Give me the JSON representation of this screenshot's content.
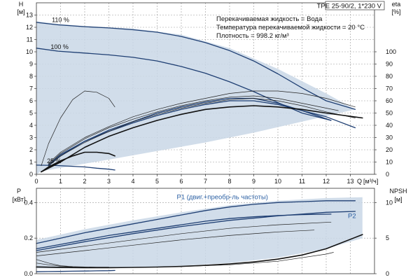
{
  "model": "TPE 25-90/2, 1*230 V",
  "info_lines": [
    "Перекачиваемая жидкость = Вода",
    "Температура перекачиваемой жидкости = 20 °C",
    "Плотность = 998.2 кг/м³"
  ],
  "colors": {
    "curve_dark": "#1f3f73",
    "curve_black": "#111111",
    "envelope_fill": "#c9d7e6",
    "accent": "#2a5fa3"
  },
  "chart_data": [
    {
      "type": "line",
      "id": "head",
      "left_axis": {
        "label": "H",
        "unit": "[м]",
        "ylim": [
          0,
          14
        ],
        "ticks": [
          0,
          1,
          2,
          3,
          4,
          5,
          6,
          7,
          8,
          9,
          10,
          11,
          12,
          13
        ]
      },
      "right_axis": {
        "label": "eta",
        "unit": "[%]",
        "ylim": [
          0,
          140
        ],
        "ticks": [
          0,
          10,
          20,
          30,
          40,
          50,
          60,
          70,
          80,
          90,
          100
        ]
      },
      "x_axis": {
        "label": "Q",
        "unit": "[м³/ч]",
        "xlim": [
          0,
          14
        ],
        "ticks": [
          0,
          1,
          2,
          3,
          4,
          5,
          6,
          7,
          8,
          9,
          10,
          11,
          12,
          13
        ]
      },
      "grid": true,
      "speed_labels": [
        {
          "text": "110 %",
          "x": 0.35,
          "y": 12.6
        },
        {
          "text": "100 %",
          "x": 0.3,
          "y": 10.4
        },
        {
          "text": "25 %",
          "x": 0.15,
          "y": 1.1
        }
      ],
      "envelope": {
        "x": [
          0,
          0.8,
          2,
          4,
          6,
          8,
          10,
          12,
          13.2,
          11,
          9,
          7,
          5,
          3,
          1.5,
          0.2,
          0
        ],
        "y": [
          12.5,
          12.3,
          12.1,
          11.9,
          11.4,
          10.3,
          8.6,
          6.6,
          5.3,
          4.3,
          3.4,
          2.6,
          1.9,
          1.2,
          0.7,
          0.25,
          0
        ]
      },
      "series": [
        {
          "role": "head-110",
          "style": "dark",
          "x": [
            0,
            0.9,
            2,
            3,
            4,
            5,
            6,
            7,
            8,
            9,
            10,
            11,
            12,
            13.2
          ],
          "y": [
            12.4,
            12.2,
            12.05,
            11.95,
            11.8,
            11.6,
            11.25,
            10.75,
            10.1,
            9.25,
            8.2,
            7.05,
            6.0,
            5.3
          ]
        },
        {
          "role": "head-100",
          "style": "dark",
          "x": [
            0,
            0.9,
            2,
            3,
            4,
            5,
            6,
            7,
            8,
            9,
            10,
            11,
            12.2
          ],
          "y": [
            10.3,
            10.05,
            9.9,
            9.75,
            9.55,
            9.25,
            8.8,
            8.25,
            7.55,
            6.75,
            5.85,
            5.0,
            4.4
          ]
        },
        {
          "role": "head-25",
          "style": "dark",
          "x": [
            0,
            0.8,
            1.5,
            2,
            2.5,
            3,
            3.25
          ],
          "y": [
            0.75,
            0.72,
            0.65,
            0.6,
            0.5,
            0.42,
            0.35
          ]
        },
        {
          "role": "eta-110",
          "style": "dark",
          "x": [
            0.5,
            1,
            2,
            3,
            4,
            5,
            6,
            7,
            8,
            9,
            10,
            11,
            12,
            13.2
          ],
          "y": [
            8,
            16,
            27,
            35,
            42,
            48,
            53,
            57,
            60,
            60,
            57,
            52,
            47,
            38
          ]
        },
        {
          "role": "eta-100",
          "style": "dark",
          "x": [
            0.5,
            1,
            2,
            3,
            4,
            5,
            6,
            7,
            8,
            9,
            10,
            11,
            12.2
          ],
          "y": [
            7,
            15,
            27,
            36,
            43,
            50,
            55,
            59,
            62,
            62,
            58,
            52,
            44
          ]
        },
        {
          "role": "eta-mid-1",
          "style": "thin",
          "x": [
            0.5,
            1,
            2,
            3,
            4,
            5,
            6,
            7,
            8,
            9,
            10,
            11,
            12.5
          ],
          "y": [
            8,
            17,
            29,
            38,
            45,
            51,
            56,
            60,
            63,
            64,
            62,
            58,
            52
          ]
        },
        {
          "role": "eta-mid-2",
          "style": "thin",
          "x": [
            0.5,
            1,
            2,
            3,
            4,
            5,
            6,
            7,
            8,
            9,
            10,
            11,
            12,
            13.2
          ],
          "y": [
            9,
            18,
            30,
            39,
            47,
            53,
            58,
            62,
            66,
            68,
            68,
            66,
            62,
            55
          ]
        },
        {
          "role": "eta-mid-3",
          "style": "thin",
          "x": [
            0.5,
            1,
            2,
            3,
            4,
            5,
            6,
            7,
            8,
            9,
            10,
            11,
            12,
            13.2
          ],
          "y": [
            7,
            15,
            26,
            35,
            43,
            49,
            54,
            58,
            61,
            62,
            60,
            56,
            51,
            46
          ]
        },
        {
          "role": "eta-thick",
          "style": "black",
          "x": [
            0.2,
            1,
            2,
            3,
            4,
            5,
            6,
            7,
            8,
            9,
            10,
            11,
            12,
            13.5
          ],
          "y": [
            2,
            10,
            22,
            31,
            38,
            44,
            49,
            53,
            55,
            56,
            55,
            53,
            50,
            46
          ]
        },
        {
          "role": "eta-small-1",
          "style": "thin",
          "x": [
            0.2,
            0.5,
            1,
            1.5,
            2,
            2.5,
            3,
            3.25
          ],
          "y": [
            7,
            25,
            46,
            61,
            68,
            67,
            62,
            55
          ]
        },
        {
          "role": "eta-small-2",
          "style": "black",
          "x": [
            0.2,
            0.5,
            1,
            1.5,
            2,
            2.5,
            3,
            3.25
          ],
          "y": [
            2,
            6,
            11,
            15,
            18,
            18,
            17,
            15
          ]
        }
      ]
    },
    {
      "type": "line",
      "id": "power-npsh",
      "left_axis": {
        "label": "P",
        "unit": "[кВт]",
        "ylim": [
          0,
          0.48
        ],
        "ticks": [
          0.0,
          0.2,
          0.4
        ]
      },
      "right_axis": {
        "label": "NPSH",
        "unit": "[м]",
        "ylim": [
          0,
          12
        ],
        "ticks": [
          0,
          5,
          10
        ]
      },
      "x_axis": {
        "xlim": [
          0,
          14
        ]
      },
      "grid": true,
      "labels": [
        {
          "text": "P1 (двиг.+преобр-ль частоты)",
          "x": 9.0,
          "y": 0.43
        },
        {
          "text": "P2",
          "x": 12.9,
          "y": 0.325
        }
      ],
      "envelope": {
        "x": [
          0,
          2,
          4,
          6,
          8,
          10,
          12,
          13.5,
          13.5,
          12,
          10,
          8,
          6,
          4,
          2,
          0
        ],
        "y": [
          0.19,
          0.25,
          0.3,
          0.345,
          0.385,
          0.41,
          0.425,
          0.43,
          0.2,
          0.14,
          0.09,
          0.06,
          0.045,
          0.035,
          0.03,
          0.03
        ]
      },
      "series": [
        {
          "role": "p1-110",
          "style": "dark",
          "x": [
            0,
            1,
            2,
            3,
            4,
            5,
            6,
            7,
            8,
            9,
            10,
            11,
            12,
            13.2
          ],
          "y": [
            0.17,
            0.2,
            0.23,
            0.255,
            0.28,
            0.305,
            0.33,
            0.355,
            0.375,
            0.39,
            0.4,
            0.405,
            0.41,
            0.41
          ]
        },
        {
          "role": "p1-100",
          "style": "dark",
          "x": [
            0,
            1,
            2,
            3,
            4,
            5,
            6,
            7,
            8,
            9,
            10,
            11,
            12.2
          ],
          "y": [
            0.14,
            0.165,
            0.19,
            0.215,
            0.235,
            0.255,
            0.275,
            0.295,
            0.31,
            0.32,
            0.327,
            0.332,
            0.335
          ]
        },
        {
          "role": "p2-110",
          "style": "dark",
          "x": [
            0,
            2,
            4,
            6,
            8,
            10,
            12,
            13.2
          ],
          "y": [
            0.13,
            0.18,
            0.225,
            0.265,
            0.3,
            0.325,
            0.345,
            0.35
          ]
        },
        {
          "role": "p-thin-1",
          "style": "thin",
          "x": [
            0,
            2,
            4,
            6,
            8,
            10,
            12.2
          ],
          "y": [
            0.12,
            0.155,
            0.19,
            0.225,
            0.255,
            0.275,
            0.29
          ]
        },
        {
          "role": "p-thin-2",
          "style": "thin",
          "x": [
            0,
            2,
            4,
            6,
            8,
            10,
            11.5
          ],
          "y": [
            0.1,
            0.13,
            0.16,
            0.19,
            0.215,
            0.235,
            0.245
          ]
        },
        {
          "role": "npsh",
          "style": "black",
          "x": [
            0,
            1,
            2,
            3,
            4,
            5,
            6,
            7,
            8,
            9,
            10,
            11,
            12,
            13.5
          ],
          "y": [
            0.0375,
            0.035,
            0.034,
            0.034,
            0.0355,
            0.0375,
            0.041,
            0.047,
            0.055,
            0.066,
            0.082,
            0.105,
            0.14,
            0.22
          ]
        },
        {
          "role": "npsh-thin",
          "style": "thin",
          "x": [
            0,
            2,
            4,
            6,
            8,
            10,
            12,
            12.3
          ],
          "y": [
            0.04,
            0.035,
            0.036,
            0.04,
            0.05,
            0.07,
            0.11,
            0.12
          ]
        },
        {
          "role": "p-25",
          "style": "dark",
          "x": [
            0,
            0.5,
            1,
            1.5,
            2,
            2.5,
            3,
            3.25
          ],
          "y": [
            0.011,
            0.012,
            0.013,
            0.014,
            0.015,
            0.016,
            0.017,
            0.018
          ]
        },
        {
          "role": "low-thin",
          "style": "thin",
          "x": [
            0,
            0.5,
            1,
            1.5,
            2,
            2.5,
            3
          ],
          "y": [
            0.08,
            0.06,
            0.045,
            0.04,
            0.038,
            0.037,
            0.037
          ]
        },
        {
          "role": "low-thin-2",
          "style": "thin",
          "x": [
            0,
            0.5,
            1,
            1.5,
            2
          ],
          "y": [
            0.06,
            0.05,
            0.042,
            0.038,
            0.036
          ]
        }
      ]
    }
  ]
}
